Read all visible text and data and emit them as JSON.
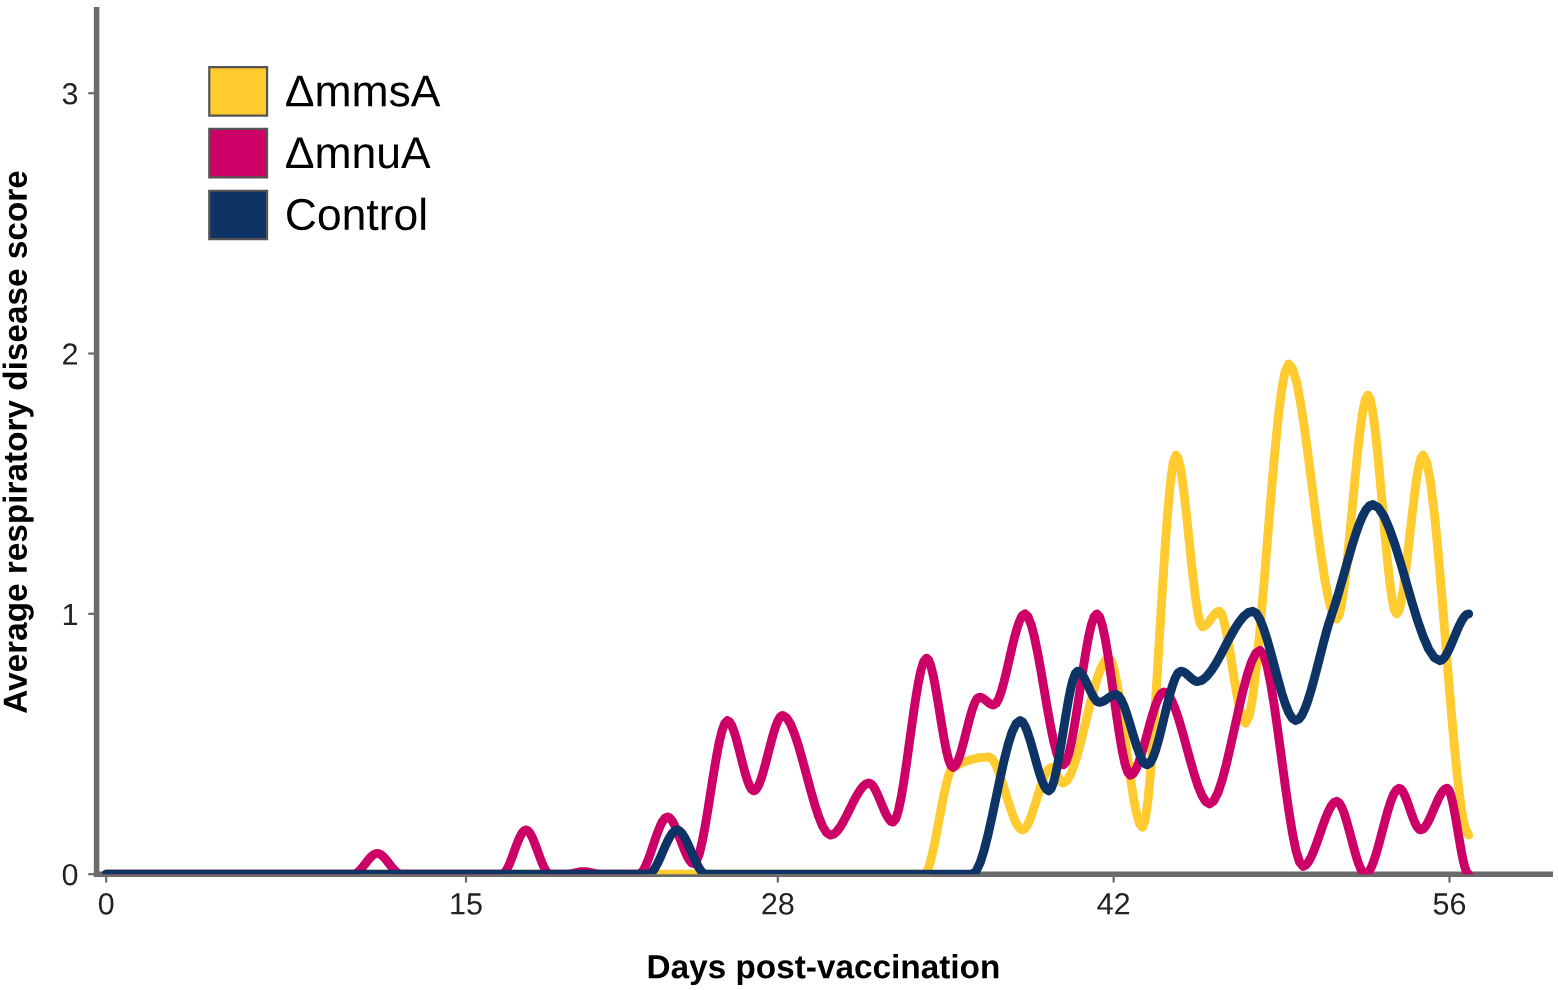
{
  "chart_data": {
    "type": "line",
    "xlabel": "Days post-vaccination",
    "ylabel": "Average respiratory disease score",
    "xlim": [
      -0.4,
      60.2
    ],
    "ylim": [
      0,
      3.32
    ],
    "xticks": [
      0,
      15,
      28,
      42,
      56
    ],
    "yticks": [
      0,
      1,
      2,
      3
    ],
    "grid": false,
    "legend": "top left",
    "marker": "none",
    "line_style": "solid",
    "series": [
      {
        "name": "ΔmmsA",
        "color": "#ffcb2e",
        "x": [
          0,
          10,
          20,
          30,
          34.1,
          35.3,
          36.8,
          38.2,
          39.4,
          39.9,
          41.8,
          43.2,
          44.6,
          45.7,
          46.4,
          47.5,
          49.3,
          51.3,
          52.6,
          53.8,
          54.9,
          56.8
        ],
        "values": [
          0,
          0,
          0,
          0,
          0,
          0.41,
          0.45,
          0.17,
          0.41,
          0.35,
          0.83,
          0.18,
          1.61,
          0.95,
          1.01,
          0.58,
          1.96,
          0.98,
          1.84,
          1.0,
          1.61,
          0.15
        ]
      },
      {
        "name": "ΔmnuA",
        "color": "#cc0066",
        "x": [
          0,
          5,
          10.3,
          11.3,
          12.3,
          16.5,
          17.5,
          18.5,
          19.2,
          19.9,
          20.6,
          22.2,
          23.4,
          24.5,
          25.9,
          27.0,
          28.2,
          30.2,
          31.8,
          32.8,
          34.2,
          35.3,
          36.4,
          37.0,
          38.3,
          39.9,
          41.3,
          42.7,
          44.1,
          46.0,
          48.1,
          49.9,
          51.3,
          52.5,
          53.9,
          54.8,
          55.9,
          56.8
        ],
        "values": [
          0,
          0,
          0,
          0.08,
          0,
          0,
          0.17,
          0,
          0,
          0.01,
          0,
          0,
          0.22,
          0.04,
          0.59,
          0.32,
          0.61,
          0.15,
          0.35,
          0.2,
          0.83,
          0.41,
          0.68,
          0.65,
          1.0,
          0.42,
          1.0,
          0.38,
          0.7,
          0.27,
          0.86,
          0.03,
          0.28,
          0,
          0.33,
          0.17,
          0.33,
          0
        ]
      },
      {
        "name": "Control",
        "color": "#0d3464",
        "x": [
          0,
          10,
          20,
          22.6,
          23.8,
          25.0,
          28,
          32,
          36.1,
          38.1,
          39.3,
          40.5,
          41.4,
          42.1,
          43.4,
          44.8,
          45.5,
          47.8,
          49.6,
          51.1,
          52.8,
          55.6,
          56.8
        ],
        "values": [
          0,
          0,
          0,
          0,
          0.17,
          0,
          0,
          0,
          0,
          0.59,
          0.32,
          0.78,
          0.66,
          0.69,
          0.42,
          0.78,
          0.74,
          1.01,
          0.59,
          1.0,
          1.42,
          0.82,
          1.0
        ]
      }
    ]
  }
}
